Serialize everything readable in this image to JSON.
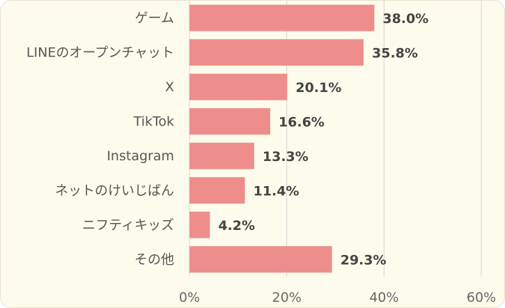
{
  "chart_data": {
    "type": "bar",
    "orientation": "horizontal",
    "categories": [
      "ゲーム",
      "LINEのオープンチャット",
      "X",
      "TikTok",
      "Instagram",
      "ネットのけいじばん",
      "ニフティキッズ",
      "その他"
    ],
    "values": [
      38.0,
      35.8,
      20.1,
      16.6,
      13.3,
      11.4,
      4.2,
      29.3
    ],
    "value_labels": [
      "38.0%",
      "35.8%",
      "20.1%",
      "16.6%",
      "13.3%",
      "11.4%",
      "4.2%",
      "29.3%"
    ],
    "xlim": [
      0,
      60
    ],
    "x_ticks": [
      0,
      20,
      40,
      60
    ],
    "x_tick_labels": [
      "0%",
      "20%",
      "40%",
      "60%"
    ],
    "grid": "vertical",
    "legend": "none",
    "colors": {
      "bar": "#ee8e8c",
      "background": "#fdfbec",
      "grid": "#d4d4d4"
    }
  }
}
